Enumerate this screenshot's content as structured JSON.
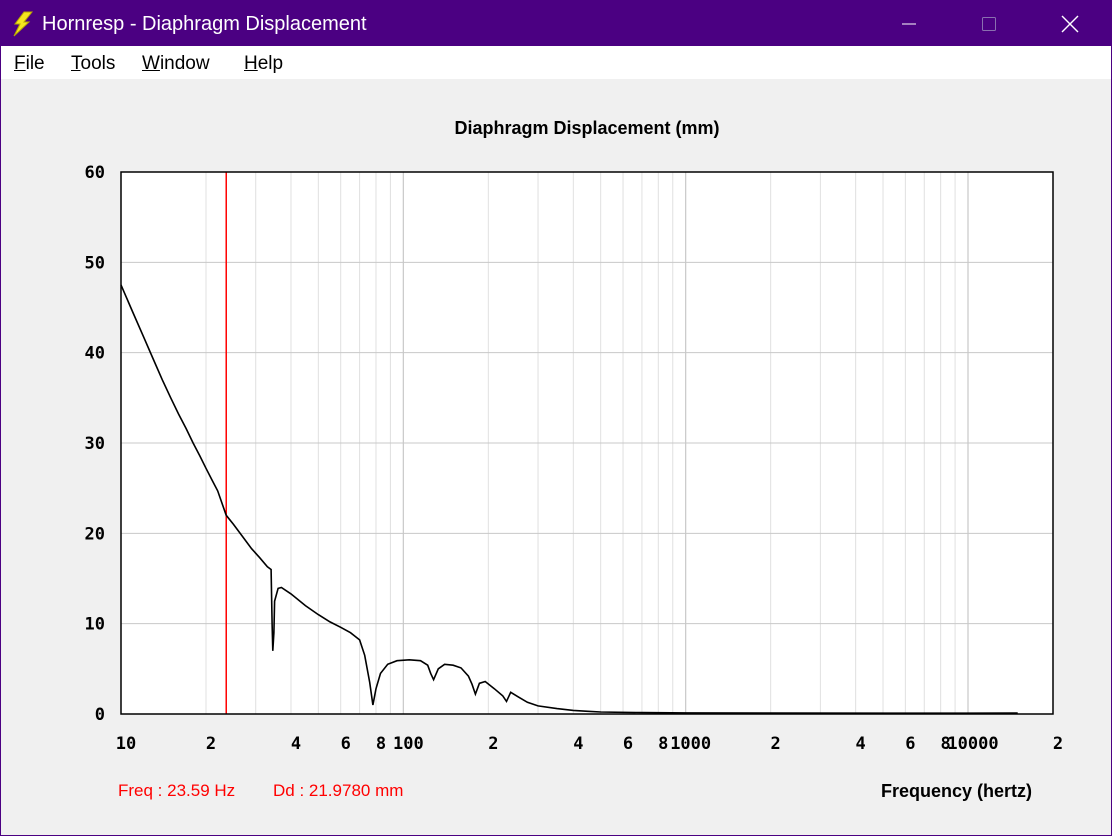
{
  "window": {
    "title": "Hornresp - Diaphragm Displacement",
    "icon": "lightning-bolt-icon",
    "controls": {
      "minimize": "minimize-icon",
      "maximize": "maximize-icon",
      "close": "close-icon"
    }
  },
  "menu": [
    "File",
    "Tools",
    "Window",
    "Help"
  ],
  "readout": {
    "freq": "Freq : 23.59 Hz",
    "dd": "Dd : 21.9780 mm"
  },
  "colors": {
    "titlebar": "#4b0082",
    "trace": "#000000",
    "cursor": "#ff0000",
    "grid": "#c8c8c8"
  },
  "chart_data": {
    "type": "line",
    "title": "Diaphragm Displacement (mm)",
    "xlabel": "Frequency (hertz)",
    "ylabel": "",
    "x_scale": "log",
    "xlim": [
      10,
      20000
    ],
    "ylim": [
      0,
      60
    ],
    "y_ticks": [
      0,
      10,
      20,
      30,
      40,
      50,
      60
    ],
    "x_tick_labels": [
      {
        "value": 10,
        "label": "10"
      },
      {
        "value": 20,
        "label": "2"
      },
      {
        "value": 40,
        "label": "4"
      },
      {
        "value": 60,
        "label": "6"
      },
      {
        "value": 80,
        "label": "8"
      },
      {
        "value": 100,
        "label": "100"
      },
      {
        "value": 200,
        "label": "2"
      },
      {
        "value": 400,
        "label": "4"
      },
      {
        "value": 600,
        "label": "6"
      },
      {
        "value": 800,
        "label": "8"
      },
      {
        "value": 1000,
        "label": "1000"
      },
      {
        "value": 2000,
        "label": "2"
      },
      {
        "value": 4000,
        "label": "4"
      },
      {
        "value": 6000,
        "label": "6"
      },
      {
        "value": 8000,
        "label": "8"
      },
      {
        "value": 10000,
        "label": "10000"
      },
      {
        "value": 20000,
        "label": "2"
      }
    ],
    "grid": true,
    "cursor": {
      "x": 23.59,
      "y": 21.978
    },
    "series": [
      {
        "values": [
          [
            10,
            47.5
          ],
          [
            11,
            44.5
          ],
          [
            12,
            41.8
          ],
          [
            13,
            39.3
          ],
          [
            14,
            37.0
          ],
          [
            15,
            35.0
          ],
          [
            16,
            33.2
          ],
          [
            17,
            31.6
          ],
          [
            18,
            30.0
          ],
          [
            19,
            28.6
          ],
          [
            20,
            27.2
          ],
          [
            21,
            25.9
          ],
          [
            22,
            24.7
          ],
          [
            23.59,
            22.0
          ],
          [
            25,
            21.0
          ],
          [
            27,
            19.6
          ],
          [
            29,
            18.3
          ],
          [
            31,
            17.3
          ],
          [
            33,
            16.3
          ],
          [
            34,
            16.0
          ],
          [
            34.3,
            10.0
          ],
          [
            34.5,
            7.0
          ],
          [
            34.8,
            9.0
          ],
          [
            35,
            12.5
          ],
          [
            36,
            13.9
          ],
          [
            37,
            14.0
          ],
          [
            40,
            13.3
          ],
          [
            45,
            12.0
          ],
          [
            50,
            11.0
          ],
          [
            55,
            10.2
          ],
          [
            60,
            9.6
          ],
          [
            65,
            9.0
          ],
          [
            70,
            8.2
          ],
          [
            73,
            6.5
          ],
          [
            76,
            3.5
          ],
          [
            78,
            1.0
          ],
          [
            80,
            2.8
          ],
          [
            83,
            4.5
          ],
          [
            88,
            5.5
          ],
          [
            95,
            5.9
          ],
          [
            105,
            6.0
          ],
          [
            115,
            5.9
          ],
          [
            122,
            5.4
          ],
          [
            125,
            4.5
          ],
          [
            128,
            3.8
          ],
          [
            133,
            5.0
          ],
          [
            140,
            5.5
          ],
          [
            150,
            5.4
          ],
          [
            160,
            5.1
          ],
          [
            170,
            4.2
          ],
          [
            175,
            3.3
          ],
          [
            180,
            2.2
          ],
          [
            186,
            3.4
          ],
          [
            195,
            3.6
          ],
          [
            210,
            2.8
          ],
          [
            225,
            2.0
          ],
          [
            232,
            1.4
          ],
          [
            240,
            2.4
          ],
          [
            255,
            1.9
          ],
          [
            275,
            1.3
          ],
          [
            300,
            0.9
          ],
          [
            350,
            0.6
          ],
          [
            400,
            0.4
          ],
          [
            450,
            0.3
          ],
          [
            500,
            0.22
          ],
          [
            700,
            0.15
          ],
          [
            1000,
            0.12
          ],
          [
            2000,
            0.1
          ],
          [
            5000,
            0.09
          ],
          [
            10000,
            0.09
          ],
          [
            15000,
            0.1
          ]
        ]
      }
    ]
  }
}
